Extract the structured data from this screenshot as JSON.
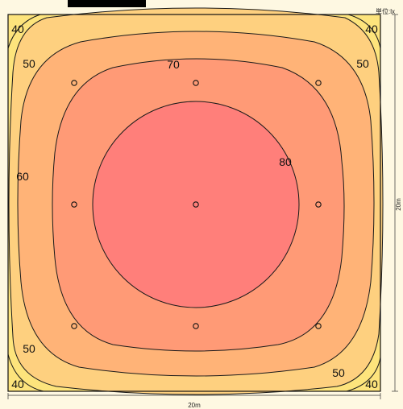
{
  "unit_label": "単位:lx",
  "dim_width": "20m",
  "dim_height": "20m",
  "colors": {
    "background": "#fef8e2",
    "band_40": "#fde47c",
    "band_50": "#fed07f",
    "band_60": "#ffb377",
    "band_70": "#ff9a76",
    "band_80": "#ff7f7a",
    "line": "#1a1a1a"
  },
  "contour_labels": [
    {
      "text": "40"
    },
    {
      "text": "40"
    },
    {
      "text": "40"
    },
    {
      "text": "40"
    },
    {
      "text": "50"
    },
    {
      "text": "50"
    },
    {
      "text": "50"
    },
    {
      "text": "50"
    },
    {
      "text": "60"
    },
    {
      "text": "70"
    },
    {
      "text": "80"
    }
  ],
  "luminaire_grid": {
    "rows": 3,
    "cols": 3
  }
}
